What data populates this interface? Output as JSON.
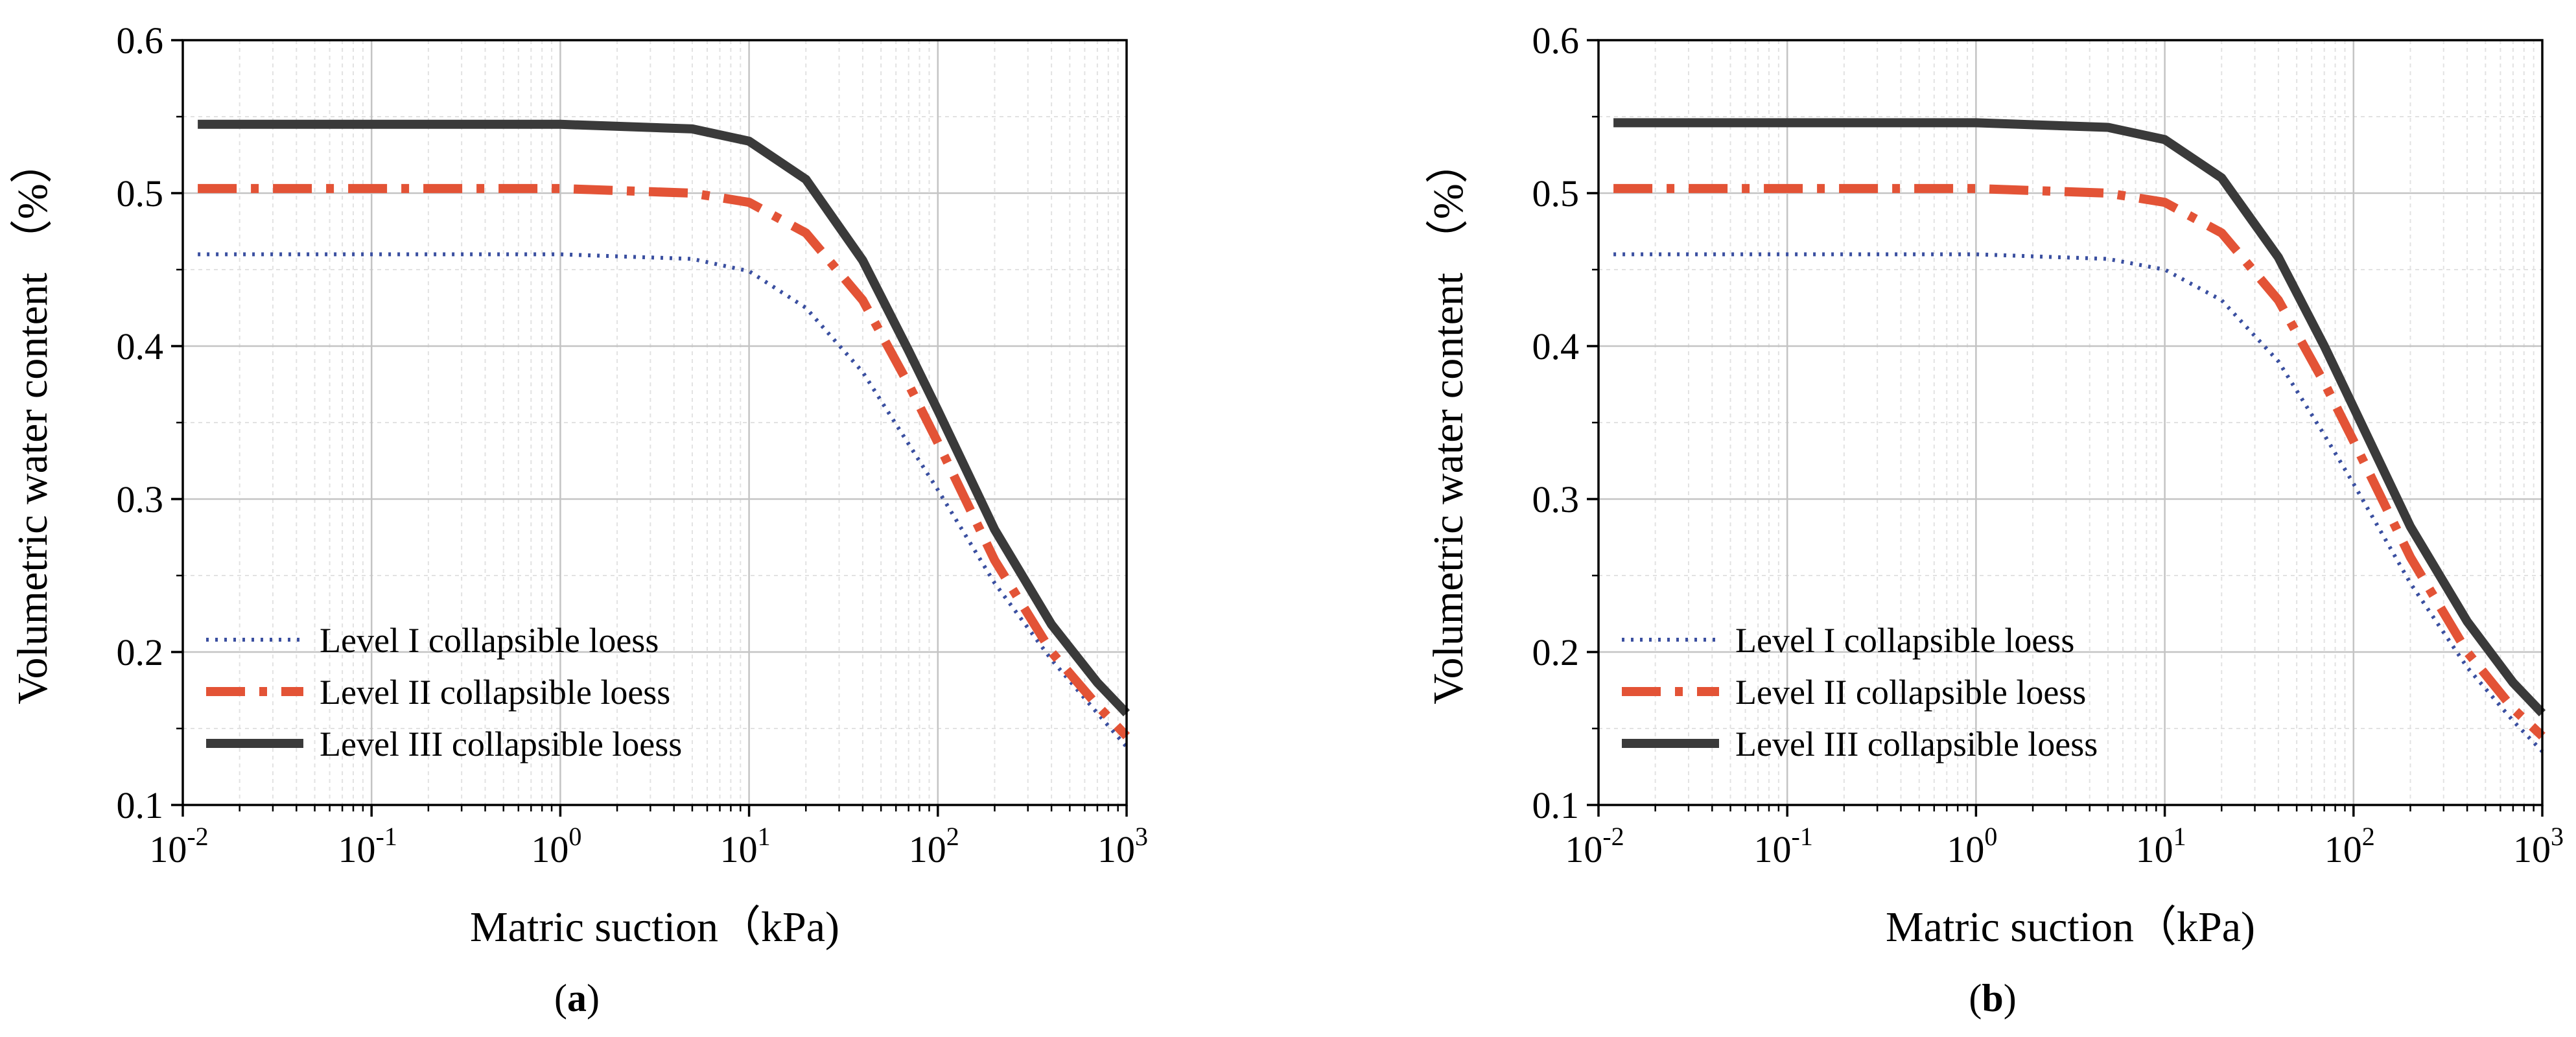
{
  "figure": {
    "panels": [
      "a",
      "b"
    ]
  },
  "chart_data": [
    {
      "panel_label": "a",
      "type": "line",
      "title": "",
      "xlabel": "Matric suction（kPa)",
      "ylabel": "Volumetric water content （%）",
      "xscale": "log",
      "xlim": [
        0.01,
        1000
      ],
      "ylim": [
        0.1,
        0.6
      ],
      "x_tick_labels": [
        {
          "base": "10",
          "exp": "-2"
        },
        {
          "base": "10",
          "exp": "-1"
        },
        {
          "base": "10",
          "exp": "0"
        },
        {
          "base": "10",
          "exp": "1"
        },
        {
          "base": "10",
          "exp": "2"
        },
        {
          "base": "10",
          "exp": "3"
        }
      ],
      "y_tick_labels": [
        "0.1",
        "0.2",
        "0.3",
        "0.4",
        "0.5",
        "0.6"
      ],
      "grid": true,
      "legend_position": "bottom-left",
      "series": [
        {
          "name": "Level I collapsible loess",
          "style": "dotted",
          "color": "#3a4fa0",
          "x": [
            0.012,
            0.1,
            1,
            5,
            10,
            20,
            40,
            70,
            100,
            200,
            400,
            700,
            1000
          ],
          "y": [
            0.46,
            0.46,
            0.46,
            0.457,
            0.449,
            0.425,
            0.383,
            0.336,
            0.306,
            0.245,
            0.195,
            0.16,
            0.138
          ]
        },
        {
          "name": "Level II collapsible loess",
          "style": "dashdot",
          "color": "#e35336",
          "x": [
            0.012,
            0.1,
            1,
            5,
            10,
            20,
            40,
            70,
            100,
            200,
            400,
            700,
            1000
          ],
          "y": [
            0.503,
            0.503,
            0.503,
            0.5,
            0.494,
            0.474,
            0.43,
            0.375,
            0.337,
            0.26,
            0.2,
            0.165,
            0.145
          ]
        },
        {
          "name": "Level III collapsible loess",
          "style": "solid",
          "color": "#3a3a3a",
          "x": [
            0.012,
            0.1,
            1,
            5,
            10,
            20,
            40,
            70,
            100,
            200,
            400,
            700,
            1000
          ],
          "y": [
            0.545,
            0.545,
            0.545,
            0.542,
            0.534,
            0.509,
            0.456,
            0.397,
            0.358,
            0.28,
            0.218,
            0.18,
            0.16
          ]
        }
      ]
    },
    {
      "panel_label": "b",
      "type": "line",
      "title": "",
      "xlabel": "Matric suction（kPa)",
      "ylabel": "Volumetric water content （%）",
      "xscale": "log",
      "xlim": [
        0.01,
        1000
      ],
      "ylim": [
        0.1,
        0.6
      ],
      "x_tick_labels": [
        {
          "base": "10",
          "exp": "-2"
        },
        {
          "base": "10",
          "exp": "-1"
        },
        {
          "base": "10",
          "exp": "0"
        },
        {
          "base": "10",
          "exp": "1"
        },
        {
          "base": "10",
          "exp": "2"
        },
        {
          "base": "10",
          "exp": "3"
        }
      ],
      "y_tick_labels": [
        "0.1",
        "0.2",
        "0.3",
        "0.4",
        "0.5",
        "0.6"
      ],
      "grid": true,
      "legend_position": "bottom-left",
      "series": [
        {
          "name": "Level I collapsible loess",
          "style": "dotted",
          "color": "#3a4fa0",
          "x": [
            0.012,
            0.1,
            1,
            5,
            10,
            20,
            40,
            70,
            100,
            200,
            400,
            700,
            1000
          ],
          "y": [
            0.46,
            0.46,
            0.46,
            0.457,
            0.45,
            0.43,
            0.39,
            0.342,
            0.31,
            0.245,
            0.19,
            0.155,
            0.135
          ]
        },
        {
          "name": "Level II collapsible loess",
          "style": "dashdot",
          "color": "#e35336",
          "x": [
            0.012,
            0.1,
            1,
            5,
            10,
            20,
            40,
            70,
            100,
            200,
            400,
            700,
            1000
          ],
          "y": [
            0.503,
            0.503,
            0.503,
            0.5,
            0.494,
            0.474,
            0.43,
            0.376,
            0.338,
            0.262,
            0.2,
            0.163,
            0.145
          ]
        },
        {
          "name": "Level III collapsible loess",
          "style": "solid",
          "color": "#3a3a3a",
          "x": [
            0.012,
            0.1,
            1,
            5,
            10,
            20,
            40,
            70,
            100,
            200,
            400,
            700,
            1000
          ],
          "y": [
            0.546,
            0.546,
            0.546,
            0.543,
            0.535,
            0.51,
            0.458,
            0.4,
            0.36,
            0.282,
            0.22,
            0.18,
            0.16
          ]
        }
      ]
    }
  ]
}
